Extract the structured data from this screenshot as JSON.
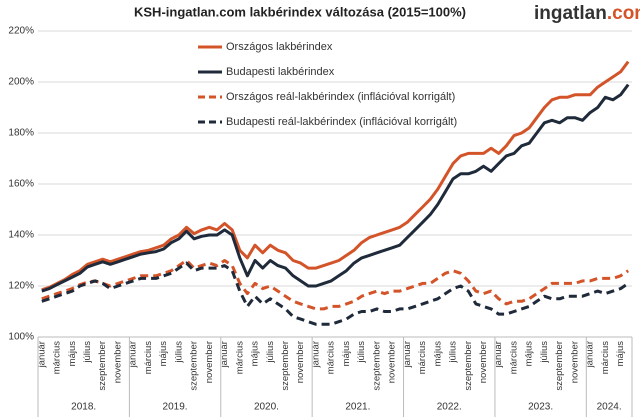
{
  "chart_data": {
    "type": "line",
    "title": "KSH-ingatlan.com lakbérindex változása (2015=100%)",
    "logo": {
      "main": "ingatlan",
      "accent": ".com"
    },
    "categories": [
      "január",
      null,
      "március",
      null,
      "május",
      null,
      "július",
      null,
      "szeptember",
      null,
      "november",
      null,
      "január",
      null,
      "március",
      null,
      "május",
      null,
      "július",
      null,
      "szeptember",
      null,
      "november",
      null,
      "január",
      null,
      "március",
      null,
      "május",
      null,
      "július",
      null,
      "szeptember",
      null,
      "november",
      null,
      "január",
      null,
      "március",
      null,
      "május",
      null,
      "július",
      null,
      "szeptember",
      null,
      "november",
      null,
      "január",
      null,
      "március",
      null,
      "május",
      null,
      "július",
      null,
      "szeptember",
      null,
      "november",
      null,
      "január",
      null,
      "március",
      null,
      "május",
      null,
      "július",
      null,
      "szeptember",
      null,
      "november",
      null,
      "január",
      null,
      "március",
      null,
      "május",
      null
    ],
    "years": [
      "2018.",
      "2019.",
      "2020.",
      "2021.",
      "2022.",
      "2023.",
      "2024."
    ],
    "ylim": [
      100,
      220
    ],
    "yticks": [
      {
        "value": 100,
        "label": "100%"
      },
      {
        "value": 120,
        "label": "120%"
      },
      {
        "value": 140,
        "label": "140%"
      },
      {
        "value": 160,
        "label": "160%"
      },
      {
        "value": 180,
        "label": "180%"
      },
      {
        "value": 200,
        "label": "200%"
      },
      {
        "value": 220,
        "label": "220%"
      }
    ],
    "grid": true,
    "series": [
      {
        "name": "Országos lakbérindex",
        "color": "#d4542a",
        "dashed": false,
        "values": [
          118.5,
          119.5,
          121,
          122.5,
          124.5,
          126,
          128.5,
          129.5,
          130.5,
          129.5,
          130.5,
          131.5,
          132.5,
          133.5,
          134,
          135,
          136,
          138.5,
          140,
          143,
          140.5,
          142,
          143,
          142,
          144.5,
          142,
          134,
          131,
          136,
          133,
          136,
          134,
          133,
          130,
          129,
          127,
          127,
          128,
          129,
          130,
          132,
          134,
          137,
          139,
          140,
          141,
          142,
          143,
          145,
          148,
          151,
          154,
          158,
          163,
          168,
          171,
          172,
          172,
          172,
          174,
          172,
          175,
          179,
          180,
          182,
          186,
          190,
          193,
          194,
          194,
          195,
          195,
          195,
          198,
          200,
          202,
          204,
          208
        ]
      },
      {
        "name": "Budapesti lakbérindex",
        "color": "#1f2a3a",
        "dashed": false,
        "values": [
          118,
          119,
          120.5,
          122,
          123.5,
          125,
          127.5,
          128.5,
          129.5,
          128.5,
          129.5,
          130.5,
          131.5,
          132.5,
          133,
          133.5,
          134.5,
          137,
          138.5,
          141.5,
          138.5,
          139.5,
          140,
          140,
          142,
          140,
          131,
          124,
          130,
          127,
          130,
          128,
          127,
          124,
          122,
          120,
          120,
          121,
          122,
          124,
          126,
          129,
          131,
          132,
          133,
          134,
          135,
          136,
          139,
          142,
          145,
          148,
          152,
          157,
          162,
          164,
          164,
          165,
          167,
          165,
          168,
          171,
          172,
          175,
          176,
          180,
          184,
          185,
          184,
          186,
          186,
          185,
          188,
          190,
          194,
          193,
          195,
          199
        ]
      },
      {
        "name": "Országos reál-lakbérindex (inflációval korrigált)",
        "color": "#d4542a",
        "dashed": true,
        "values": [
          115,
          116,
          117,
          118,
          119,
          120.5,
          121.5,
          122,
          121,
          120,
          121,
          122,
          123,
          124,
          124,
          124,
          125,
          126,
          128,
          130,
          127,
          128,
          129,
          128,
          130,
          128,
          121,
          117,
          121,
          119,
          120,
          118,
          116,
          114,
          113,
          112,
          111,
          111,
          112,
          112,
          113,
          114,
          116,
          117,
          118,
          117,
          118,
          118,
          119,
          120,
          121,
          121,
          123,
          125,
          126,
          125,
          122,
          118,
          117,
          118,
          115,
          113,
          114,
          114,
          115,
          117,
          119,
          121,
          121,
          121,
          121,
          122,
          122,
          123,
          123,
          123,
          124,
          126
        ]
      },
      {
        "name": "Budapesti reál-lakbérindex (inflációval korrigált)",
        "color": "#1f2a3a",
        "dashed": true,
        "values": [
          114,
          115,
          116,
          117,
          118,
          120,
          121,
          122,
          121,
          119,
          120,
          121,
          122,
          123,
          123,
          123,
          124,
          125,
          127,
          129,
          126,
          127,
          127,
          127,
          128,
          126,
          118,
          112,
          116,
          113,
          115,
          113,
          111,
          108,
          107,
          106,
          105,
          105,
          105,
          106,
          107,
          109,
          110,
          110,
          111,
          110,
          110,
          111,
          111,
          112,
          113,
          114,
          115,
          117,
          119,
          120,
          118,
          113,
          112,
          111,
          109,
          109,
          110,
          111,
          112,
          114,
          116,
          115,
          115,
          116,
          116,
          116,
          117,
          118,
          117,
          118,
          119,
          121
        ]
      }
    ]
  }
}
